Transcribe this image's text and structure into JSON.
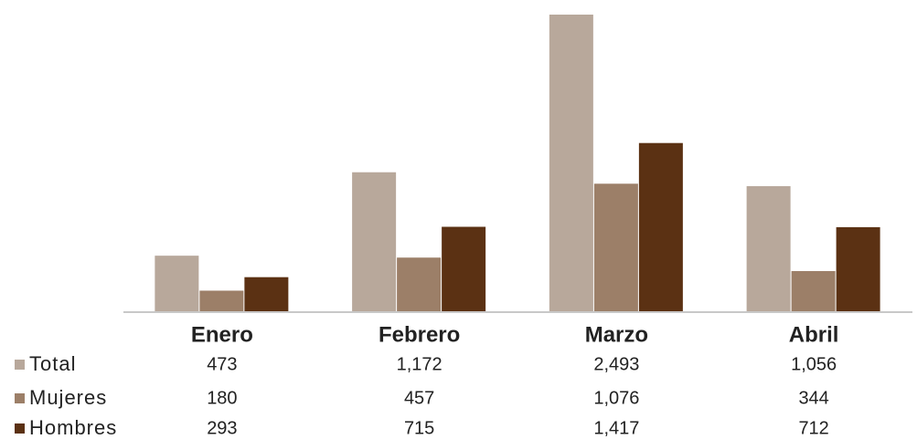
{
  "chart_data": {
    "type": "bar",
    "categories": [
      "Enero",
      "Febrero",
      "Marzo",
      "Abril"
    ],
    "series": [
      {
        "name": "Total",
        "color": "#b8a89b",
        "values": [
          473,
          1172,
          2493,
          1056
        ],
        "value_labels": [
          "473",
          "1,172",
          "2,493",
          "1,056"
        ]
      },
      {
        "name": "Mujeres",
        "color": "#9c7f68",
        "values": [
          180,
          457,
          1076,
          344
        ],
        "value_labels": [
          "180",
          "457",
          "1,076",
          "344"
        ]
      },
      {
        "name": "Hombres",
        "color": "#5b3113",
        "values": [
          293,
          715,
          1417,
          712
        ],
        "value_labels": [
          "293",
          "715",
          "1,417",
          "712"
        ]
      }
    ]
  }
}
